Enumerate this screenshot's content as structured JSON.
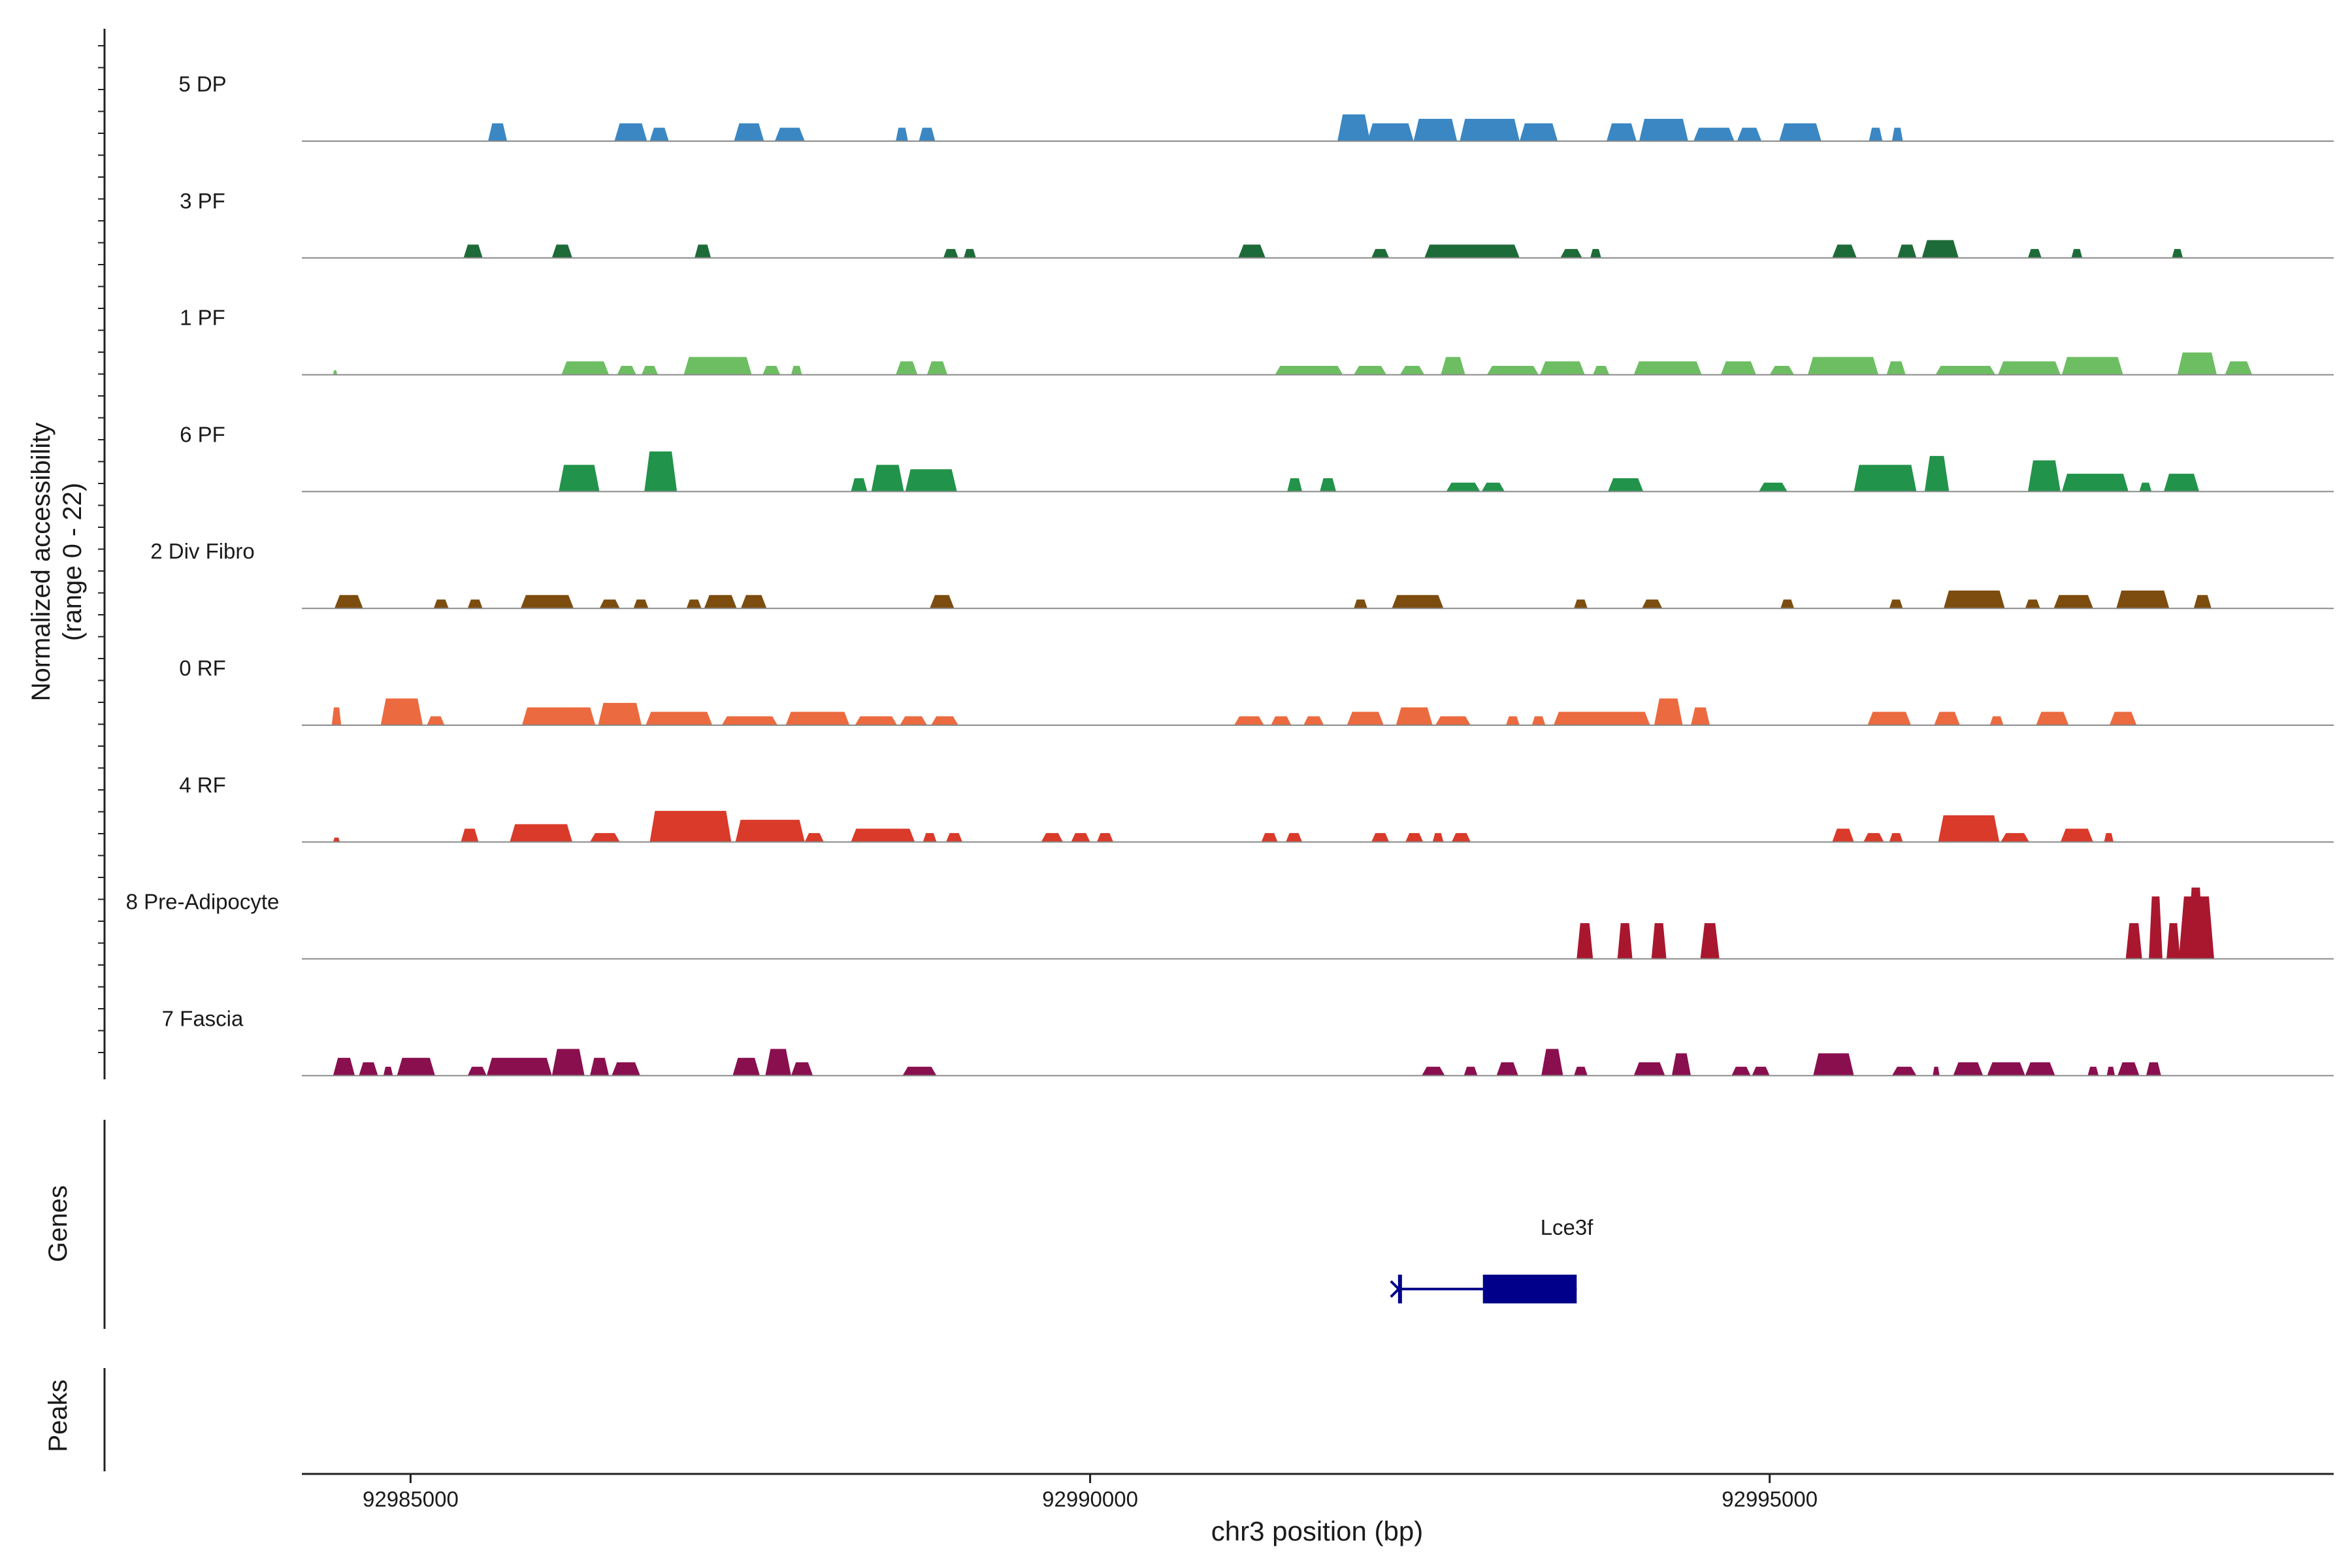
{
  "chart_data": {
    "type": "area",
    "ylabel_lines": [
      "Normalized accessibility",
      "(range 0 - 22)"
    ],
    "xlabel": "chr3 position (bp)",
    "x_range": [
      92984200,
      92999150
    ],
    "y_range": [
      0,
      22
    ],
    "x_ticks": [
      {
        "value": 92985000,
        "label": "92985000"
      },
      {
        "value": 92990000,
        "label": "92990000"
      },
      {
        "value": 92995000,
        "label": "92995000"
      }
    ],
    "tracks": [
      {
        "name": "5 DP",
        "color": "#3A87C3",
        "peaks": [
          [
            92985570,
            92985710,
            4
          ],
          [
            92986500,
            92986740,
            4
          ],
          [
            92986760,
            92986900,
            3
          ],
          [
            92987380,
            92987600,
            4
          ],
          [
            92987680,
            92987900,
            3
          ],
          [
            92988570,
            92988660,
            3
          ],
          [
            92988740,
            92988860,
            3
          ],
          [
            92991820,
            92992060,
            6
          ],
          [
            92992040,
            92992380,
            4
          ],
          [
            92992380,
            92992700,
            5
          ],
          [
            92992720,
            92993160,
            5
          ],
          [
            92993160,
            92993440,
            4
          ],
          [
            92993800,
            92994020,
            4
          ],
          [
            92994040,
            92994400,
            5
          ],
          [
            92994440,
            92994740,
            3
          ],
          [
            92994760,
            92994940,
            3
          ],
          [
            92995070,
            92995380,
            4
          ],
          [
            92995730,
            92995830,
            3
          ],
          [
            92995900,
            92995980,
            3
          ]
        ]
      },
      {
        "name": "3 PF",
        "color": "#1D6B38",
        "peaks": [
          [
            92985390,
            92985530,
            3
          ],
          [
            92986040,
            92986190,
            3
          ],
          [
            92987090,
            92987210,
            3
          ],
          [
            92988920,
            92989030,
            2
          ],
          [
            92989070,
            92989160,
            2
          ],
          [
            92991090,
            92991290,
            3
          ],
          [
            92992070,
            92992200,
            2
          ],
          [
            92992460,
            92993160,
            3
          ],
          [
            92993460,
            92993620,
            2
          ],
          [
            92993680,
            92993760,
            2
          ],
          [
            92995460,
            92995640,
            3
          ],
          [
            92995940,
            92996080,
            3
          ],
          [
            92996120,
            92996390,
            4
          ],
          [
            92996900,
            92997000,
            2
          ],
          [
            92997220,
            92997300,
            2
          ],
          [
            92997960,
            92998040,
            2
          ]
        ]
      },
      {
        "name": "1 PF",
        "color": "#6DBE62",
        "peaks": [
          [
            92984430,
            92984460,
            1
          ],
          [
            92986110,
            92986460,
            3
          ],
          [
            92986520,
            92986660,
            2
          ],
          [
            92986700,
            92986820,
            2
          ],
          [
            92987010,
            92987510,
            4
          ],
          [
            92987590,
            92987720,
            2
          ],
          [
            92987800,
            92987880,
            2
          ],
          [
            92988570,
            92988730,
            3
          ],
          [
            92988800,
            92988950,
            3
          ],
          [
            92991360,
            92991860,
            2
          ],
          [
            92991940,
            92992180,
            2
          ],
          [
            92992280,
            92992460,
            2
          ],
          [
            92992580,
            92992760,
            4
          ],
          [
            92992920,
            92993300,
            2
          ],
          [
            92993310,
            92993640,
            3
          ],
          [
            92993700,
            92993820,
            2
          ],
          [
            92994000,
            92994500,
            3
          ],
          [
            92994640,
            92994900,
            3
          ],
          [
            92995000,
            92995180,
            2
          ],
          [
            92995280,
            92995800,
            4
          ],
          [
            92995860,
            92996000,
            3
          ],
          [
            92996220,
            92996660,
            2
          ],
          [
            92996680,
            92997140,
            3
          ],
          [
            92997150,
            92997600,
            4
          ],
          [
            92998000,
            92998290,
            5
          ],
          [
            92998350,
            92998550,
            3
          ]
        ]
      },
      {
        "name": "6 PF",
        "color": "#22934A",
        "peaks": [
          [
            92986090,
            92986390,
            6
          ],
          [
            92986720,
            92986960,
            9
          ],
          [
            92988240,
            92988360,
            3
          ],
          [
            92988390,
            92988630,
            6
          ],
          [
            92988640,
            92989020,
            5
          ],
          [
            92991450,
            92991560,
            3
          ],
          [
            92991690,
            92991810,
            3
          ],
          [
            92992620,
            92992870,
            2
          ],
          [
            92992880,
            92993050,
            2
          ],
          [
            92993810,
            92994070,
            3
          ],
          [
            92994920,
            92995130,
            2
          ],
          [
            92995620,
            92996080,
            6
          ],
          [
            92996140,
            92996320,
            8
          ],
          [
            92996900,
            92997140,
            7
          ],
          [
            92997150,
            92997640,
            4
          ],
          [
            92997720,
            92997810,
            2
          ],
          [
            92997900,
            92998160,
            4
          ]
        ]
      },
      {
        "name": "2 Div Fibro",
        "color": "#7D4D0F",
        "peaks": [
          [
            92984440,
            92984650,
            3
          ],
          [
            92985170,
            92985280,
            2
          ],
          [
            92985420,
            92985530,
            2
          ],
          [
            92985810,
            92986200,
            3
          ],
          [
            92986090,
            92986180,
            1
          ],
          [
            92986390,
            92986540,
            2
          ],
          [
            92986640,
            92986750,
            2
          ],
          [
            92987030,
            92987140,
            2
          ],
          [
            92987160,
            92987400,
            3
          ],
          [
            92987430,
            92987620,
            3
          ],
          [
            92988820,
            92989000,
            3
          ],
          [
            92991940,
            92992040,
            2
          ],
          [
            92992220,
            92992600,
            3
          ],
          [
            92993560,
            92993660,
            2
          ],
          [
            92994060,
            92994210,
            2
          ],
          [
            92995080,
            92995180,
            2
          ],
          [
            92995880,
            92995980,
            2
          ],
          [
            92996280,
            92996730,
            4
          ],
          [
            92996880,
            92996990,
            2
          ],
          [
            92997090,
            92997380,
            3
          ],
          [
            92997550,
            92997940,
            4
          ],
          [
            92998120,
            92998250,
            3
          ]
        ]
      },
      {
        "name": "0 RF",
        "color": "#EC6A3F",
        "peaks": [
          [
            92984420,
            92984490,
            4
          ],
          [
            92984780,
            92985090,
            6
          ],
          [
            92985120,
            92985250,
            2
          ],
          [
            92985820,
            92986360,
            4
          ],
          [
            92986380,
            92986700,
            5
          ],
          [
            92986730,
            92987220,
            3
          ],
          [
            92987290,
            92987700,
            2
          ],
          [
            92987760,
            92988230,
            3
          ],
          [
            92988270,
            92988580,
            2
          ],
          [
            92988600,
            92988800,
            2
          ],
          [
            92988830,
            92989030,
            2
          ],
          [
            92991060,
            92991280,
            2
          ],
          [
            92991330,
            92991480,
            2
          ],
          [
            92991570,
            92991720,
            2
          ],
          [
            92991890,
            92992160,
            3
          ],
          [
            92992250,
            92992520,
            4
          ],
          [
            92992540,
            92992800,
            2
          ],
          [
            92993060,
            92993160,
            2
          ],
          [
            92993250,
            92993350,
            2
          ],
          [
            92993410,
            92994120,
            3
          ],
          [
            92994150,
            92994360,
            6
          ],
          [
            92994420,
            92994560,
            4
          ],
          [
            92995720,
            92996040,
            3
          ],
          [
            92996210,
            92996400,
            3
          ],
          [
            92996620,
            92996720,
            2
          ],
          [
            92996960,
            92997200,
            3
          ],
          [
            92997500,
            92997700,
            3
          ]
        ]
      },
      {
        "name": "4 RF",
        "color": "#D93A2A",
        "peaks": [
          [
            92984430,
            92984480,
            1
          ],
          [
            92985370,
            92985500,
            3
          ],
          [
            92985730,
            92986190,
            4
          ],
          [
            92986320,
            92986540,
            2
          ],
          [
            92986760,
            92987360,
            7
          ],
          [
            92987390,
            92987900,
            5
          ],
          [
            92987900,
            92988040,
            2
          ],
          [
            92988240,
            92988710,
            3
          ],
          [
            92988770,
            92988870,
            2
          ],
          [
            92988940,
            92989060,
            2
          ],
          [
            92989640,
            92989800,
            2
          ],
          [
            92989860,
            92990000,
            2
          ],
          [
            92990050,
            92990170,
            2
          ],
          [
            92991260,
            92991380,
            2
          ],
          [
            92991440,
            92991560,
            2
          ],
          [
            92992070,
            92992200,
            2
          ],
          [
            92992320,
            92992450,
            2
          ],
          [
            92992520,
            92992600,
            2
          ],
          [
            92992660,
            92992800,
            2
          ],
          [
            92995460,
            92995620,
            3
          ],
          [
            92995690,
            92995840,
            2
          ],
          [
            92995880,
            92995980,
            2
          ],
          [
            92996240,
            92996690,
            6
          ],
          [
            92996700,
            92996910,
            2
          ],
          [
            92997140,
            92997380,
            3
          ],
          [
            92997460,
            92997530,
            2
          ]
        ]
      },
      {
        "name": "8 Pre-Adipocyte",
        "color": "#A9172E",
        "peaks": [
          [
            92993580,
            92993700,
            8
          ],
          [
            92993880,
            92993990,
            8
          ],
          [
            92994130,
            92994240,
            8
          ],
          [
            92994490,
            92994630,
            8
          ],
          [
            92997620,
            92997740,
            8
          ],
          [
            92997790,
            92997890,
            14
          ],
          [
            92997920,
            92998020,
            8
          ],
          [
            92998010,
            92998270,
            14
          ],
          [
            92998080,
            92998190,
            16
          ]
        ]
      },
      {
        "name": "7 Fascia",
        "color": "#8A0F4F",
        "peaks": [
          [
            92984430,
            92984590,
            4
          ],
          [
            92984620,
            92984760,
            3
          ],
          [
            92984800,
            92984870,
            2
          ],
          [
            92984900,
            92985180,
            4
          ],
          [
            92985420,
            92985560,
            2
          ],
          [
            92985560,
            92986040,
            4
          ],
          [
            92986040,
            92986280,
            6
          ],
          [
            92986320,
            92986460,
            4
          ],
          [
            92986480,
            92986690,
            3
          ],
          [
            92987370,
            92987570,
            4
          ],
          [
            92987610,
            92987800,
            6
          ],
          [
            92987800,
            92987960,
            3
          ],
          [
            92988620,
            92988870,
            2
          ],
          [
            92992440,
            92992610,
            2
          ],
          [
            92992750,
            92992850,
            2
          ],
          [
            92992990,
            92993150,
            3
          ],
          [
            92993320,
            92993480,
            6
          ],
          [
            92993560,
            92993660,
            2
          ],
          [
            92994000,
            92994230,
            3
          ],
          [
            92994280,
            92994420,
            5
          ],
          [
            92994720,
            92994860,
            2
          ],
          [
            92994870,
            92995000,
            2
          ],
          [
            92995320,
            92995620,
            5
          ],
          [
            92995900,
            92996080,
            2
          ],
          [
            92996200,
            92996250,
            2
          ],
          [
            92996350,
            92996570,
            3
          ],
          [
            92996600,
            92996880,
            3
          ],
          [
            92996880,
            92997100,
            3
          ],
          [
            92997340,
            92997420,
            2
          ],
          [
            92997480,
            92997540,
            2
          ],
          [
            92997560,
            92997720,
            3
          ],
          [
            92997770,
            92997880,
            3
          ]
        ]
      }
    ],
    "genes_label": "Genes",
    "genes": [
      {
        "name": "Lce3f",
        "color": "#00008B",
        "start": 92992280,
        "end": 92993580,
        "cds_start": 92992890,
        "cds_end": 92993580,
        "strand": "-"
      }
    ],
    "peaks_label": "Peaks"
  }
}
